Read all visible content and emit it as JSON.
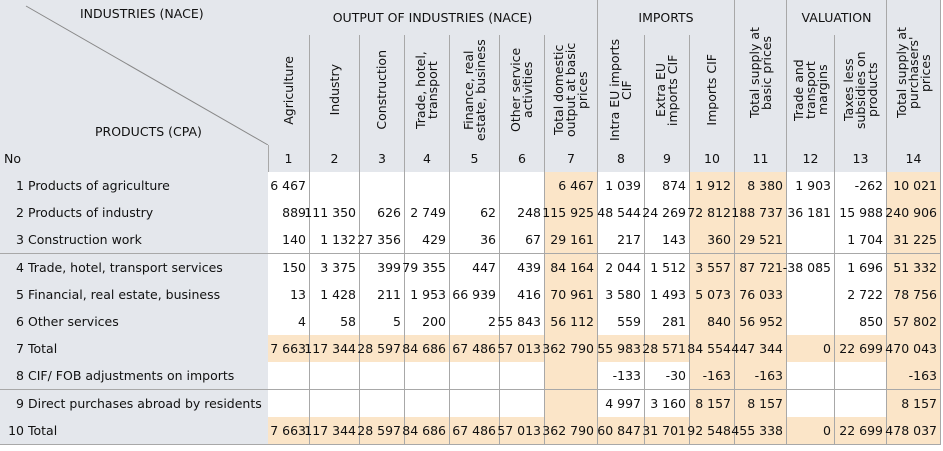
{
  "header": {
    "corner_top": "INDUSTRIES (NACE)",
    "corner_bottom": "PRODUCTS (CPA)",
    "no_label": "No",
    "groups": [
      "OUTPUT OF INDUSTRIES (NACE)",
      "IMPORTS",
      "VALUATION"
    ],
    "columns": [
      "Agriculture",
      "Industry",
      "Construction",
      "Trade, hotel, transport",
      "Finance, real estate, business",
      "Other service activities",
      "Total domestic output at basic prices",
      "Intra EU imports CIF",
      "Extra EU imports CIF",
      "Imports CIF",
      "Total supply at basic prices",
      "Trade and transport margins",
      "Taxes less subsidies on products",
      "Total supply at purchasers' prices"
    ],
    "column_numbers": [
      1,
      2,
      3,
      4,
      5,
      6,
      7,
      8,
      9,
      10,
      11,
      12,
      13,
      14
    ]
  },
  "table": {
    "rows": [
      {
        "no": 1,
        "label": "Products of agriculture",
        "cells": [
          "6 467",
          null,
          null,
          null,
          null,
          null,
          "6 467",
          "1 039",
          "874",
          "1 912",
          "8 380",
          "1 903",
          "-262",
          "10 021"
        ]
      },
      {
        "no": 2,
        "label": "Products of industry",
        "cells": [
          "889",
          "111 350",
          "626",
          "2 749",
          "62",
          "248",
          "115 925",
          "48 544",
          "24 269",
          "72 812",
          "188 737",
          "36 181",
          "15 988",
          "240 906"
        ]
      },
      {
        "no": 3,
        "label": "Construction work",
        "cells": [
          "140",
          "1 132",
          "27 356",
          "429",
          "36",
          "67",
          "29 161",
          "217",
          "143",
          "360",
          "29 521",
          null,
          "1 704",
          "31 225"
        ]
      },
      {
        "no": 4,
        "label": "Trade, hotel, transport services",
        "cells": [
          "150",
          "3 375",
          "399",
          "79 355",
          "447",
          "439",
          "84 164",
          "2 044",
          "1 512",
          "3 557",
          "87 721",
          "-38 085",
          "1 696",
          "51 332"
        ]
      },
      {
        "no": 5,
        "label": "Financial, real estate, business",
        "cells": [
          "13",
          "1 428",
          "211",
          "1 953",
          "66 939",
          "416",
          "70 961",
          "3 580",
          "1 493",
          "5 073",
          "76 033",
          null,
          "2 722",
          "78 756"
        ]
      },
      {
        "no": 6,
        "label": "Other services",
        "cells": [
          "4",
          "58",
          "5",
          "200",
          "2",
          "55 843",
          "56 112",
          "559",
          "281",
          "840",
          "56 952",
          null,
          "850",
          "57 802"
        ]
      },
      {
        "no": 7,
        "label": "Total",
        "cells": [
          "7 663",
          "117 344",
          "28 597",
          "84 686",
          "67 486",
          "57 013",
          "362 790",
          "55 983",
          "28 571",
          "84 554",
          "447 344",
          "0",
          "22 699",
          "470 043"
        ]
      },
      {
        "no": 8,
        "label": "CIF/ FOB adjustments on imports",
        "cells": [
          null,
          null,
          null,
          null,
          null,
          null,
          null,
          "-133",
          "-30",
          "-163",
          "-163",
          null,
          null,
          "-163"
        ]
      },
      {
        "no": 9,
        "label": "Direct purchases abroad by residents",
        "cells": [
          null,
          null,
          null,
          null,
          null,
          null,
          null,
          "4 997",
          "3 160",
          "8 157",
          "8 157",
          null,
          null,
          "8 157"
        ]
      },
      {
        "no": 10,
        "label": "Total",
        "cells": [
          "7 663",
          "117 344",
          "28 597",
          "84 686",
          "67 486",
          "57 013",
          "362 790",
          "60 847",
          "31 701",
          "92 548",
          "455 338",
          "0",
          "22 699",
          "478 037"
        ]
      }
    ]
  }
}
